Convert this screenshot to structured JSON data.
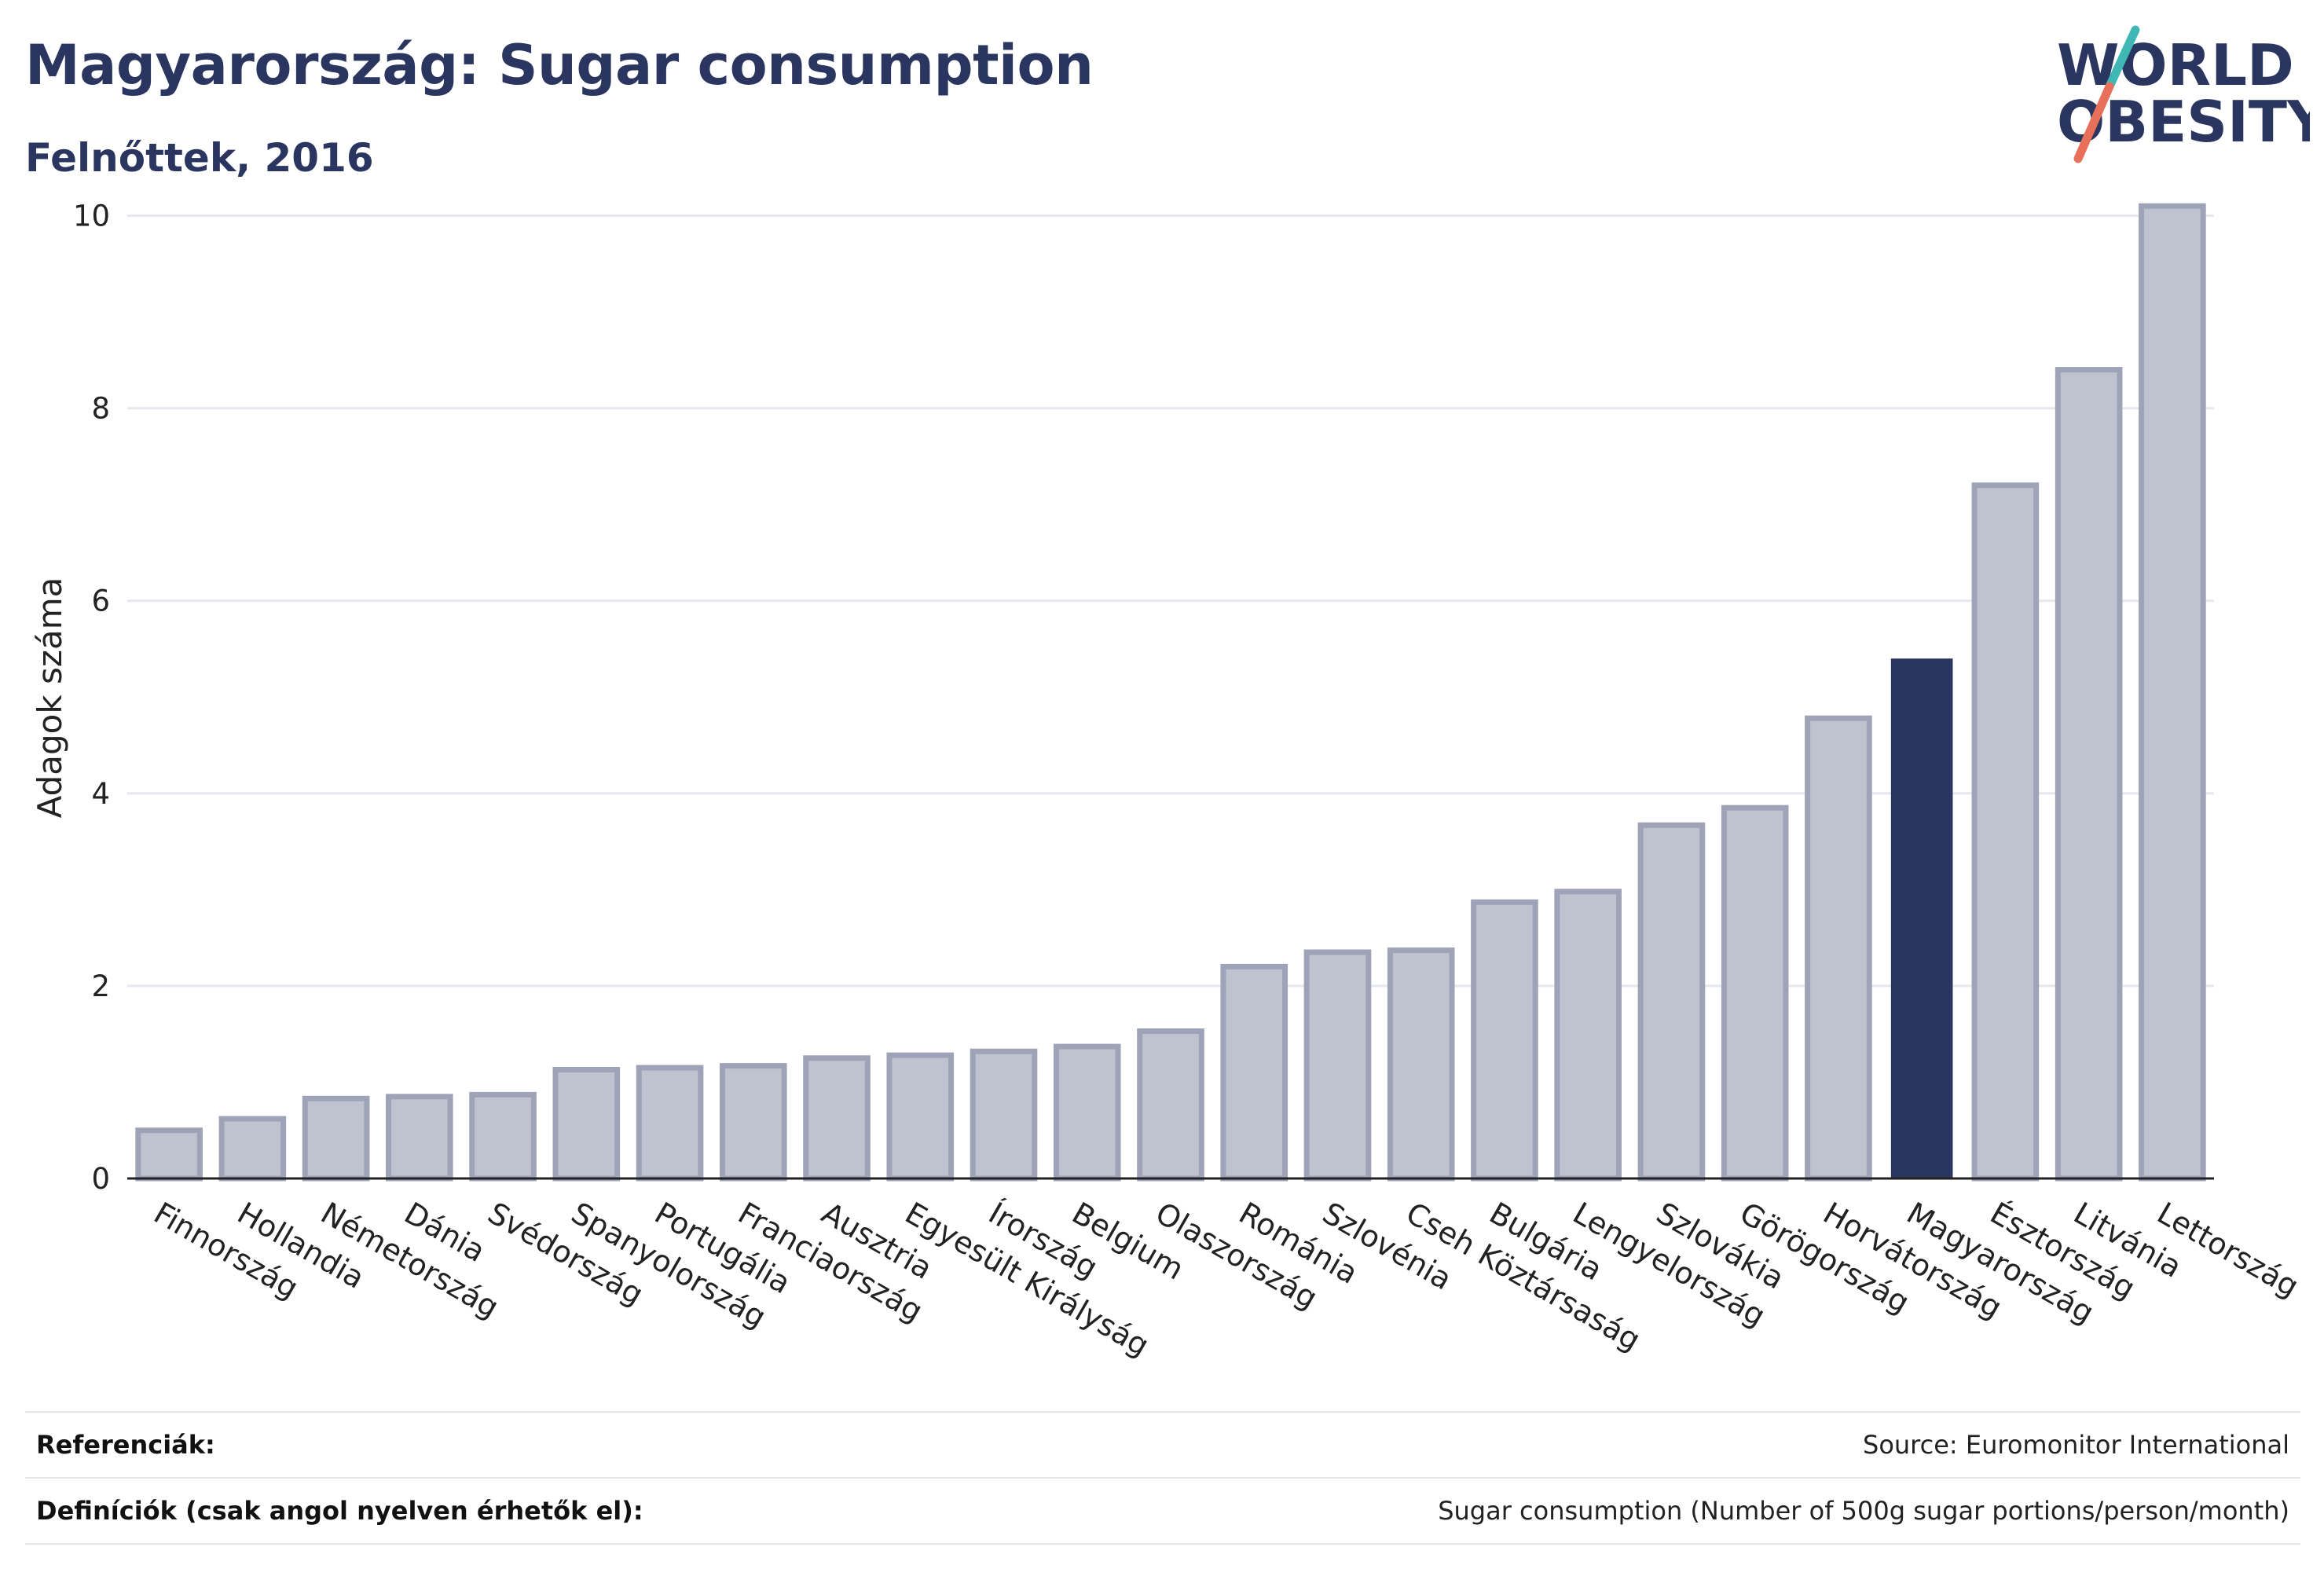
{
  "header": {
    "title": "Magyarország: Sugar consumption",
    "subtitle": "Felnőttek, 2016"
  },
  "logo": {
    "line1": "WORLD",
    "line2": "OBESITY",
    "colors": {
      "text": "#2a3560",
      "slash_top": "#3fb8b5",
      "slash_bottom": "#e8705b"
    }
  },
  "colors": {
    "bar_fill": "#bfc2cf",
    "bar_stroke": "#9ea3b8",
    "highlight_fill": "#2a3560",
    "grid": "#e6e8ee"
  },
  "chart_data": {
    "type": "bar",
    "ylabel": "Adagok száma",
    "xlabel": "",
    "ylim": [
      0,
      10.2
    ],
    "yticks": [
      0,
      2,
      4,
      6,
      8,
      10
    ],
    "grid": true,
    "highlight": "Magyarország",
    "categories": [
      "Finnország",
      "Hollandia",
      "Németország",
      "Dánia",
      "Svédország",
      "Spanyolország",
      "Portugália",
      "Franciaország",
      "Ausztria",
      "Egyesült Királyság",
      "Írország",
      "Belgium",
      "Olaszország",
      "Románia",
      "Szlovénia",
      "Cseh Köztársaság",
      "Bulgária",
      "Lengyelország",
      "Szlovákia",
      "Görögország",
      "Horvátország",
      "Magyarország",
      "Észtország",
      "Litvánia",
      "Lettország"
    ],
    "values": [
      0.5,
      0.62,
      0.83,
      0.85,
      0.87,
      1.13,
      1.15,
      1.17,
      1.25,
      1.28,
      1.32,
      1.37,
      1.53,
      2.2,
      2.35,
      2.37,
      2.87,
      2.98,
      3.67,
      3.85,
      4.78,
      5.4,
      7.2,
      8.4,
      10.1
    ]
  },
  "footer": {
    "references_label": "Referenciák:",
    "references_value": "Source: Euromonitor International",
    "definitions_label": "Definíciók (csak angol nyelven érhetők el):",
    "definitions_value": "Sugar consumption (Number of 500g sugar portions/person/month)"
  }
}
